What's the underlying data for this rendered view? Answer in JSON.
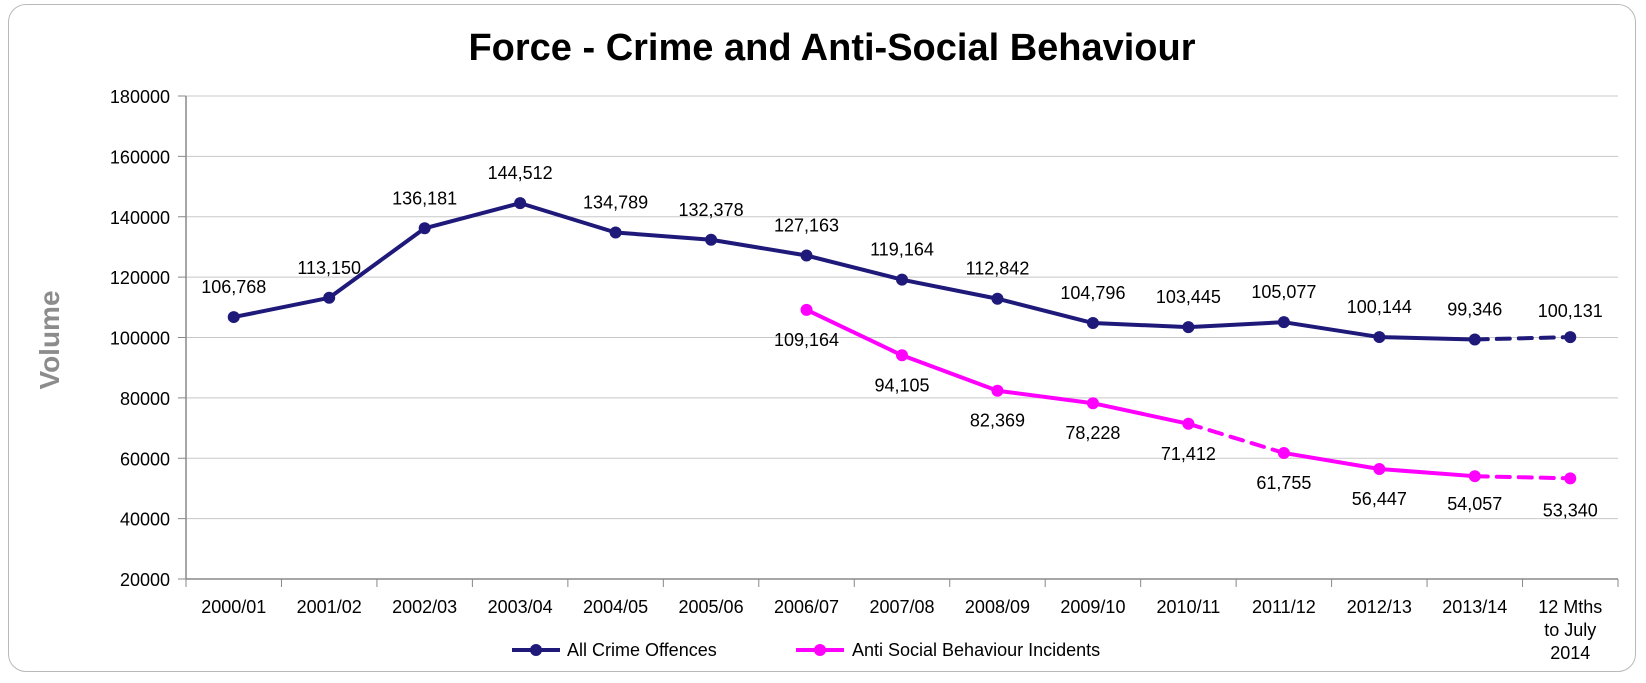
{
  "chart_data": {
    "type": "line",
    "title": "Force - Crime and Anti-Social Behaviour",
    "ylabel": "Volume",
    "xlabel": "",
    "ylim": [
      20000,
      180000
    ],
    "y_ticks": [
      "180000",
      "160000",
      "140000",
      "120000",
      "100000",
      "80000",
      "60000",
      "40000",
      "20000"
    ],
    "categories": [
      "2000/01",
      "2001/02",
      "2002/03",
      "2003/04",
      "2004/05",
      "2005/06",
      "2006/07",
      "2007/08",
      "2008/09",
      "2009/10",
      "2010/11",
      "2011/12",
      "2012/13",
      "2013/14",
      "12 Mths to July 2014"
    ],
    "grid": true,
    "legend_position": "bottom",
    "series": [
      {
        "name": "All Crime Offences",
        "color": "#1f1a7a",
        "values": [
          106768,
          113150,
          136181,
          144512,
          134789,
          132378,
          127163,
          119164,
          112842,
          104796,
          103445,
          105077,
          100144,
          99346,
          100131
        ],
        "labels": [
          "106,768",
          "113,150",
          "136,181",
          "144,512",
          "134,789",
          "132,378",
          "127,163",
          "119,164",
          "112,842",
          "104,796",
          "103,445",
          "105,077",
          "100,144",
          "99,346",
          "100,131"
        ],
        "dashed_from_index": 13
      },
      {
        "name": "Anti Social Behaviour Incidents",
        "color": "#ff00ff",
        "values": [
          null,
          null,
          null,
          null,
          null,
          null,
          109164,
          94105,
          82369,
          78228,
          71412,
          61755,
          56447,
          54057,
          53340
        ],
        "labels": [
          "",
          "",
          "",
          "",
          "",
          "",
          "109,164",
          "94,105",
          "82,369",
          "78,228",
          "71,412",
          "61,755",
          "56,447",
          "54,057",
          "53,340"
        ],
        "dashed_segments": [
          [
            10,
            11
          ],
          [
            13,
            14
          ]
        ]
      }
    ]
  }
}
